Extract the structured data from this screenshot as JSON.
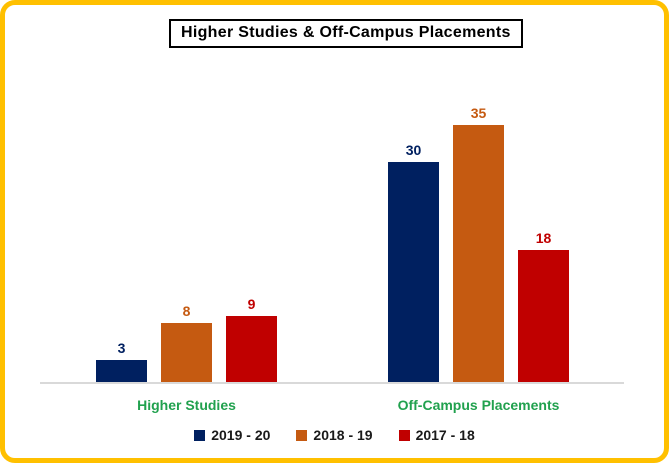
{
  "title": "Higher Studies & Off-Campus Placements",
  "colors": {
    "frame_border": "#FFC000",
    "background": "#FFFFFF",
    "title_text": "#000000",
    "title_border": "#000000",
    "axis_line": "#D9D9D9",
    "category_label": "#21A14E",
    "legend_text": "#1A1A1A"
  },
  "chart_data": {
    "type": "bar",
    "title": "Higher Studies & Off-Campus Placements",
    "categories": [
      "Higher Studies",
      "Off-Campus Placements"
    ],
    "series": [
      {
        "name": "2019 - 20",
        "color": "#002060",
        "values": [
          3,
          30
        ]
      },
      {
        "name": "2018 - 19",
        "color": "#C55A11",
        "values": [
          8,
          35
        ]
      },
      {
        "name": "2017 - 18",
        "color": "#C00000",
        "values": [
          9,
          18
        ]
      }
    ],
    "ylim": [
      0,
      35
    ],
    "xlabel": "",
    "ylabel": "",
    "grid": false,
    "y_axis_visible": false,
    "data_labels": true,
    "data_label_color": "match-series",
    "legend_position": "bottom"
  }
}
